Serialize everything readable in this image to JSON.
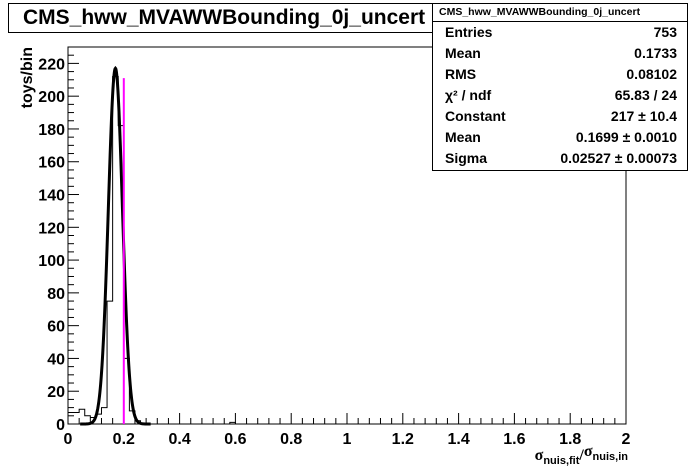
{
  "title": "CMS_hww_MVAWWBounding_0j_uncert",
  "stats": {
    "header": "CMS_hww_MVAWWBounding_0j_uncert",
    "rows": [
      {
        "label": "Entries",
        "value": "753"
      },
      {
        "label": "Mean",
        "value": "0.1733"
      },
      {
        "label": "RMS",
        "value": "0.08102"
      },
      {
        "label": "χ² / ndf",
        "value": "65.83 / 24"
      },
      {
        "label": "Constant",
        "value": "217 ± 10.4"
      },
      {
        "label": "Mean",
        "value": "0.1699 ± 0.0010"
      },
      {
        "label": "Sigma",
        "value": "0.02527 ± 0.00073"
      }
    ]
  },
  "chart_data": {
    "type": "bar",
    "histogram": {
      "bin_width": 0.02,
      "x_start": 0,
      "values": [
        7,
        7,
        9,
        5,
        4,
        6,
        10,
        75,
        212,
        182,
        40,
        8,
        2,
        0,
        0,
        0,
        0,
        0,
        0,
        0,
        0,
        0,
        0,
        0,
        0,
        0,
        0,
        0,
        0,
        1,
        0,
        0,
        0,
        0,
        0,
        0,
        0,
        0,
        0,
        0,
        0,
        0,
        0,
        0,
        0,
        0,
        0,
        0,
        0,
        0,
        0,
        0,
        0,
        0,
        0,
        0,
        0,
        0,
        0,
        0,
        0,
        0,
        0,
        0,
        0,
        0,
        0,
        0,
        0,
        0,
        0,
        0,
        0,
        0,
        0,
        0,
        0,
        0,
        0,
        0,
        0,
        0,
        0,
        0,
        0,
        0,
        0,
        0,
        0,
        0,
        0,
        0,
        0,
        0,
        0,
        0,
        0,
        0,
        0,
        0
      ]
    },
    "fit": {
      "function": "gaus",
      "constant": 217,
      "mean": 0.1699,
      "sigma": 0.02527
    },
    "vertical_line": {
      "x": 0.2,
      "color": "#ff00ff"
    },
    "xlim": [
      0,
      2
    ],
    "ylim": [
      0,
      230
    ],
    "x_ticks": [
      0,
      0.2,
      0.4,
      0.6,
      0.8,
      1,
      1.2,
      1.4,
      1.6,
      1.8,
      2
    ],
    "y_ticks": [
      0,
      20,
      40,
      60,
      80,
      100,
      120,
      140,
      160,
      180,
      200,
      220
    ],
    "ylabel": "toys/bin",
    "xlabel": {
      "num_main": "σ",
      "num_sub": "nuis,fit",
      "sep": "/",
      "den_main": "σ",
      "den_sub": "nuis,in"
    }
  }
}
